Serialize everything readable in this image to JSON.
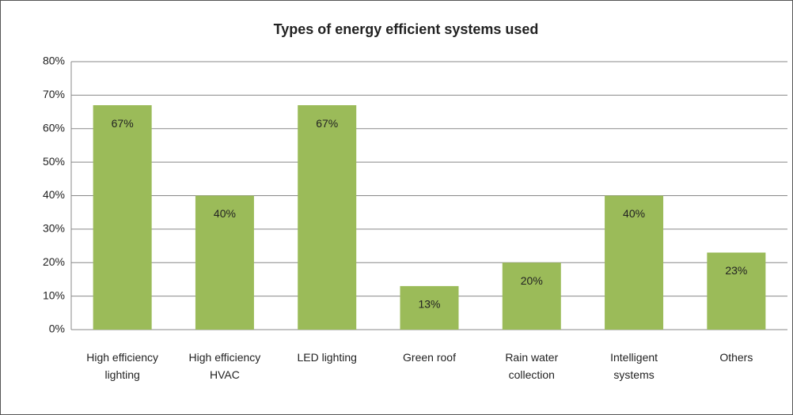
{
  "chart_data": {
    "type": "bar",
    "title": "Types of energy efficient systems used",
    "categories": [
      "High efficiency lighting",
      "High efficiency HVAC",
      "LED lighting",
      "Green roof",
      "Rain water collection",
      "Intelligent systems",
      "Others"
    ],
    "values": [
      67,
      40,
      67,
      13,
      20,
      40,
      23
    ],
    "value_labels": [
      "67%",
      "40%",
      "67%",
      "13%",
      "20%",
      "40%",
      "23%"
    ],
    "color": "#9bbb59",
    "ylim": [
      0,
      80
    ],
    "yticks": [
      {
        "value": 0,
        "label": "0%"
      },
      {
        "value": 10,
        "label": "10%"
      },
      {
        "value": 20,
        "label": "20%"
      },
      {
        "value": 30,
        "label": "30%"
      },
      {
        "value": 40,
        "label": "40%"
      },
      {
        "value": 50,
        "label": "50%"
      },
      {
        "value": 60,
        "label": "60%"
      },
      {
        "value": 70,
        "label": "70%"
      },
      {
        "value": 80,
        "label": "80%"
      }
    ],
    "grid": true
  }
}
